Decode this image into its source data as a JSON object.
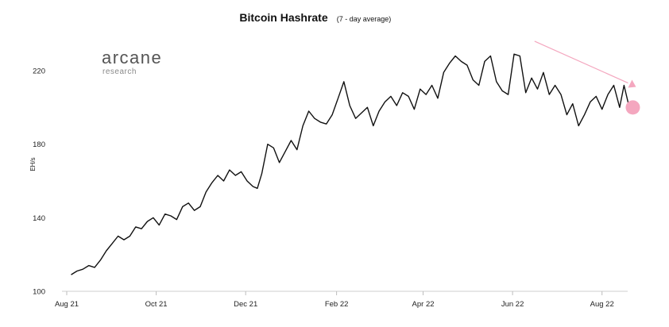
{
  "logo": {
    "name": "arcane",
    "tagline": "research"
  },
  "colors": {
    "line": "#111111",
    "accent": "#f4a7bf"
  },
  "chart_data": {
    "type": "line",
    "title": "Bitcoin Hashrate",
    "subtitle": "(7 - day average)",
    "xlabel": "",
    "ylabel": "EH/s",
    "ylim": [
      100,
      240
    ],
    "yticks": [
      100,
      140,
      180,
      220
    ],
    "xlim": [
      "2021-08-01",
      "2022-08-25"
    ],
    "xticks": [
      {
        "label": "Aug 21",
        "date": "2021-08-01"
      },
      {
        "label": "Oct 21",
        "date": "2021-10-01"
      },
      {
        "label": "Dec 21",
        "date": "2021-12-01"
      },
      {
        "label": "Feb 22",
        "date": "2022-02-01"
      },
      {
        "label": "Apr 22",
        "date": "2022-04-01"
      },
      {
        "label": "Jun 22",
        "date": "2022-06-01"
      },
      {
        "label": "Aug 22",
        "date": "2022-08-01"
      }
    ],
    "grid": false,
    "legend": "none",
    "series": [
      {
        "x": [
          "2021-08-04",
          "2021-08-08",
          "2021-08-12",
          "2021-08-16",
          "2021-08-20",
          "2021-08-24",
          "2021-08-28",
          "2021-09-01",
          "2021-09-05",
          "2021-09-09",
          "2021-09-13",
          "2021-09-17",
          "2021-09-21",
          "2021-09-25",
          "2021-09-29",
          "2021-10-03",
          "2021-10-07",
          "2021-10-11",
          "2021-10-15",
          "2021-10-19",
          "2021-10-23",
          "2021-10-27",
          "2021-10-31",
          "2021-11-04",
          "2021-11-08",
          "2021-11-12",
          "2021-11-16",
          "2021-11-20",
          "2021-11-24",
          "2021-11-28",
          "2021-12-02",
          "2021-12-06",
          "2021-12-09",
          "2021-12-12",
          "2021-12-16",
          "2021-12-20",
          "2021-12-24",
          "2021-12-28",
          "2022-01-01",
          "2022-01-05",
          "2022-01-09",
          "2022-01-13",
          "2022-01-17",
          "2022-01-21",
          "2022-01-25",
          "2022-01-29",
          "2022-02-02",
          "2022-02-06",
          "2022-02-10",
          "2022-02-14",
          "2022-02-18",
          "2022-02-22",
          "2022-02-26",
          "2022-03-02",
          "2022-03-06",
          "2022-03-10",
          "2022-03-14",
          "2022-03-18",
          "2022-03-22",
          "2022-03-26",
          "2022-03-30",
          "2022-04-03",
          "2022-04-07",
          "2022-04-11",
          "2022-04-15",
          "2022-04-19",
          "2022-04-23",
          "2022-04-27",
          "2022-05-01",
          "2022-05-05",
          "2022-05-09",
          "2022-05-13",
          "2022-05-17",
          "2022-05-21",
          "2022-05-25",
          "2022-05-29",
          "2022-06-02",
          "2022-06-06",
          "2022-06-10",
          "2022-06-14",
          "2022-06-18",
          "2022-06-22",
          "2022-06-26",
          "2022-06-30",
          "2022-07-04",
          "2022-07-08",
          "2022-07-12",
          "2022-07-16",
          "2022-07-20",
          "2022-07-24",
          "2022-07-28",
          "2022-08-01",
          "2022-08-05",
          "2022-08-09",
          "2022-08-13",
          "2022-08-16",
          "2022-08-19"
        ],
        "y": [
          109,
          111,
          112,
          114,
          113,
          117,
          122,
          126,
          130,
          128,
          130,
          135,
          134,
          138,
          140,
          136,
          142,
          141,
          139,
          146,
          148,
          144,
          146,
          154,
          159,
          163,
          160,
          166,
          163,
          165,
          160,
          157,
          156,
          164,
          180,
          178,
          170,
          176,
          182,
          177,
          190,
          198,
          194,
          192,
          191,
          196,
          205,
          214,
          201,
          194,
          197,
          200,
          190,
          198,
          203,
          206,
          201,
          208,
          206,
          199,
          210,
          207,
          212,
          205,
          219,
          224,
          228,
          225,
          223,
          215,
          212,
          225,
          228,
          214,
          209,
          207,
          229,
          228,
          208,
          216,
          210,
          219,
          207,
          212,
          207,
          196,
          202,
          190,
          196,
          203,
          206,
          199,
          207,
          212,
          200,
          212,
          202
        ]
      }
    ],
    "annotations": [
      {
        "type": "arrow",
        "from": [
          "2022-06-16",
          236
        ],
        "to": [
          "2022-08-22",
          212
        ]
      },
      {
        "type": "marker",
        "at": [
          "2022-08-22",
          200
        ]
      }
    ]
  }
}
